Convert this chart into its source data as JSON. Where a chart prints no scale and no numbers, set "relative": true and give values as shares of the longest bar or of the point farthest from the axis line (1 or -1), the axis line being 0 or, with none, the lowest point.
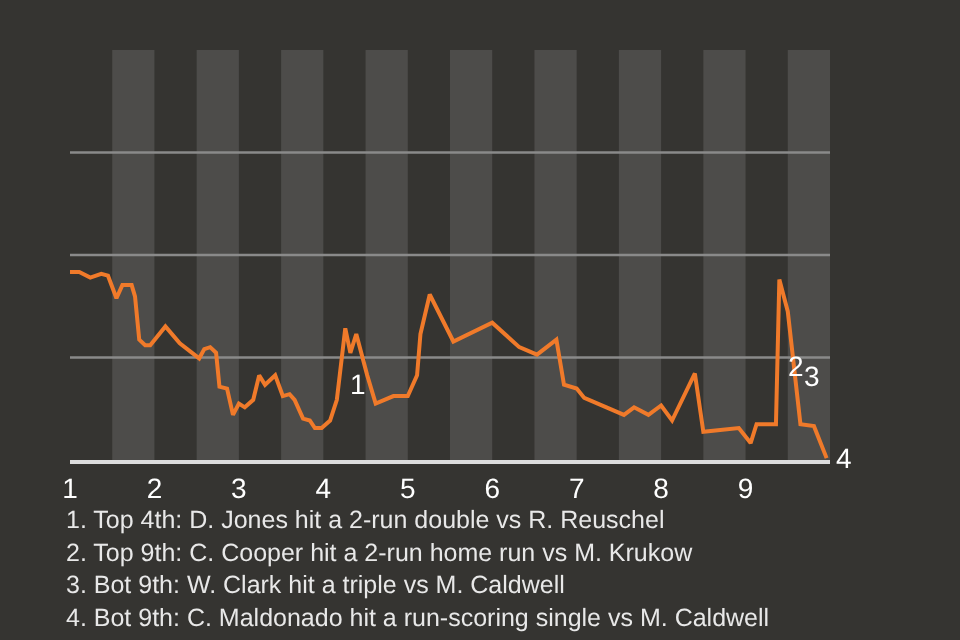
{
  "chart_data": {
    "type": "line",
    "relative": true,
    "marker": "none",
    "line_style": "solid",
    "xlim": [
      1,
      10
    ],
    "xticks": [
      1,
      2,
      3,
      4,
      5,
      6,
      7,
      8,
      9
    ],
    "ref_lines": [
      {
        "axis": "y",
        "value": 0.545,
        "color": "#8a8a8a"
      },
      {
        "axis": "y",
        "value": 1.09,
        "color": "#8a8a8a"
      },
      {
        "axis": "y",
        "value": 1.635,
        "color": "#8a8a8a"
      }
    ],
    "bands": [
      {
        "axis": "x",
        "from": 1.5,
        "to": 2,
        "color": "#4d4c4a"
      },
      {
        "axis": "x",
        "from": 2.5,
        "to": 3,
        "color": "#4d4c4a"
      },
      {
        "axis": "x",
        "from": 3.5,
        "to": 4,
        "color": "#4d4c4a"
      },
      {
        "axis": "x",
        "from": 4.5,
        "to": 5,
        "color": "#4d4c4a"
      },
      {
        "axis": "x",
        "from": 5.5,
        "to": 6,
        "color": "#4d4c4a"
      },
      {
        "axis": "x",
        "from": 6.5,
        "to": 7,
        "color": "#4d4c4a"
      },
      {
        "axis": "x",
        "from": 7.5,
        "to": 8,
        "color": "#4d4c4a"
      },
      {
        "axis": "x",
        "from": 8.5,
        "to": 9,
        "color": "#4d4c4a"
      },
      {
        "axis": "x",
        "from": 9.5,
        "to": 10,
        "color": "#4d4c4a"
      }
    ],
    "series": [
      {
        "color": "#f07a2a",
        "x": [
          1.0,
          1.11,
          1.24,
          1.37,
          1.45,
          1.55,
          1.62,
          1.73,
          1.77,
          1.82,
          1.89,
          1.95,
          2.13,
          2.3,
          2.53,
          2.59,
          2.66,
          2.73,
          2.77,
          2.86,
          2.93,
          3.0,
          3.07,
          3.17,
          3.24,
          3.31,
          3.43,
          3.52,
          3.6,
          3.66,
          3.76,
          3.84,
          3.9,
          3.98,
          4.08,
          4.16,
          4.26,
          4.32,
          4.39,
          4.52,
          4.62,
          4.83,
          5.0,
          5.11,
          5.15,
          5.26,
          5.54,
          6.0,
          6.32,
          6.53,
          6.76,
          6.85,
          7.0,
          7.09,
          7.56,
          7.68,
          7.85,
          8.0,
          8.13,
          8.4,
          8.5,
          8.92,
          9.06,
          9.13,
          9.36,
          9.4,
          9.5,
          9.65,
          9.81,
          9.96
        ],
        "values": [
          1.0,
          1.0,
          0.97,
          0.99,
          0.98,
          0.86,
          0.93,
          0.93,
          0.87,
          0.64,
          0.61,
          0.61,
          0.71,
          0.62,
          0.54,
          0.59,
          0.6,
          0.57,
          0.39,
          0.38,
          0.24,
          0.3,
          0.28,
          0.32,
          0.45,
          0.4,
          0.45,
          0.34,
          0.35,
          0.32,
          0.22,
          0.21,
          0.17,
          0.17,
          0.21,
          0.32,
          0.7,
          0.57,
          0.67,
          0.45,
          0.3,
          0.34,
          0.34,
          0.45,
          0.67,
          0.88,
          0.63,
          0.73,
          0.6,
          0.56,
          0.64,
          0.4,
          0.38,
          0.33,
          0.24,
          0.28,
          0.24,
          0.29,
          0.21,
          0.46,
          0.15,
          0.17,
          0.09,
          0.19,
          0.19,
          0.96,
          0.79,
          0.19,
          0.18,
          0.01
        ]
      }
    ],
    "annotations": [
      {
        "text": "1",
        "x": 4.32,
        "y": 0.57
      },
      {
        "text": "2",
        "x": 9.38,
        "y": 0.5
      },
      {
        "text": "3",
        "x": 9.58,
        "y": 0.45
      },
      {
        "text": "4",
        "x": 9.96,
        "y": 0.01
      },
      "1. Top 4th: D. Jones hit a 2-run double vs R. Reuschel",
      "2. Top 9th: C. Cooper hit a 2-run home run vs M. Krukow",
      "3. Bot 9th: W. Clark hit a triple vs M. Caldwell",
      "4. Bot 9th: C. Maldonado hit a run-scoring single vs M. Caldwell"
    ]
  }
}
